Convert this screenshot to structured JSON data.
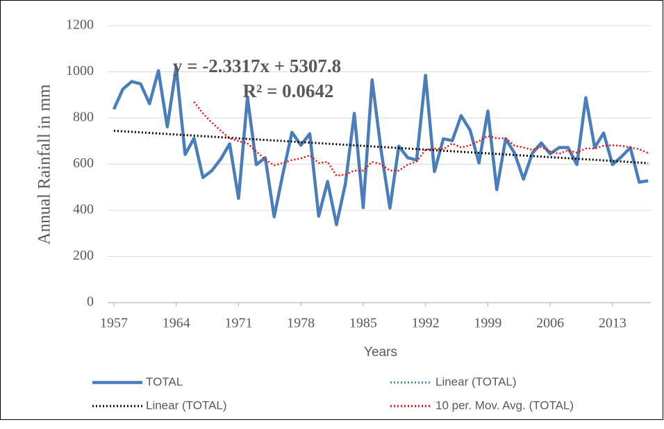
{
  "chart_data": {
    "type": "line",
    "x_label": "Years",
    "y_label": "Annual Rainfall in mm",
    "x": [
      1957,
      1958,
      1959,
      1960,
      1961,
      1962,
      1963,
      1964,
      1965,
      1966,
      1967,
      1968,
      1969,
      1970,
      1971,
      1972,
      1973,
      1974,
      1975,
      1976,
      1977,
      1978,
      1979,
      1980,
      1981,
      1982,
      1983,
      1984,
      1985,
      1986,
      1987,
      1988,
      1989,
      1990,
      1991,
      1992,
      1993,
      1994,
      1995,
      1996,
      1997,
      1998,
      1999,
      2000,
      2001,
      2002,
      2003,
      2004,
      2005,
      2006,
      2007,
      2008,
      2009,
      2010,
      2011,
      2012,
      2013,
      2014,
      2015,
      2016,
      2017
    ],
    "xlim": [
      1956.3,
      2017.3
    ],
    "xticks": [
      1957,
      1964,
      1971,
      1978,
      1985,
      1992,
      1999,
      2006,
      2013
    ],
    "ylim": [
      0,
      1200
    ],
    "yticks": [
      0,
      200,
      400,
      600,
      800,
      1000,
      1200
    ],
    "grid": true,
    "series": [
      {
        "name": "TOTAL",
        "color": "#4a7ebb",
        "style": "solid",
        "values": [
          838,
          925,
          958,
          948,
          862,
          1005,
          762,
          1020,
          642,
          712,
          542,
          572,
          622,
          688,
          452,
          890,
          598,
          628,
          372,
          562,
          738,
          682,
          732,
          375,
          525,
          338,
          515,
          820,
          412,
          965,
          662,
          410,
          678,
          628,
          618,
          985,
          568,
          710,
          702,
          810,
          748,
          605,
          830,
          490,
          710,
          648,
          535,
          648,
          692,
          645,
          672,
          672,
          598,
          888,
          672,
          735,
          598,
          632,
          672,
          522,
          528
        ]
      },
      {
        "name": "10 per. Mov. Avg. (TOTAL)",
        "color": "#ff0000",
        "style": "dotted",
        "values": [
          null,
          null,
          null,
          null,
          null,
          null,
          null,
          null,
          null,
          870,
          820,
          780,
          745,
          712,
          700,
          690,
          655,
          620,
          595,
          605,
          618,
          625,
          638,
          605,
          610,
          550,
          555,
          572,
          572,
          610,
          600,
          572,
          572,
          598,
          612,
          662,
          668,
          665,
          690,
          672,
          682,
          700,
          722,
          712,
          712,
          680,
          672,
          662,
          675,
          655,
          645,
          660,
          650,
          668,
          668,
          680,
          682,
          680,
          672,
          665,
          648
        ]
      }
    ],
    "trendline": {
      "name": "Linear (TOTAL)",
      "color": "#000000",
      "slope": -2.3317,
      "intercept": 5307.8,
      "equation": "y = -2.3317x + 5307.8",
      "r2_label": "R² = 0.0642"
    },
    "legend": [
      {
        "name": "TOTAL",
        "color": "#4a7ebb",
        "style": "solid"
      },
      {
        "name": "Linear (TOTAL)",
        "color": "#4a7ebb",
        "style": "dotted"
      },
      {
        "name": "Linear (TOTAL)",
        "color": "#000000",
        "style": "dotted"
      },
      {
        "name": "10 per. Mov. Avg. (TOTAL)",
        "color": "#ff0000",
        "style": "dotted"
      }
    ]
  }
}
